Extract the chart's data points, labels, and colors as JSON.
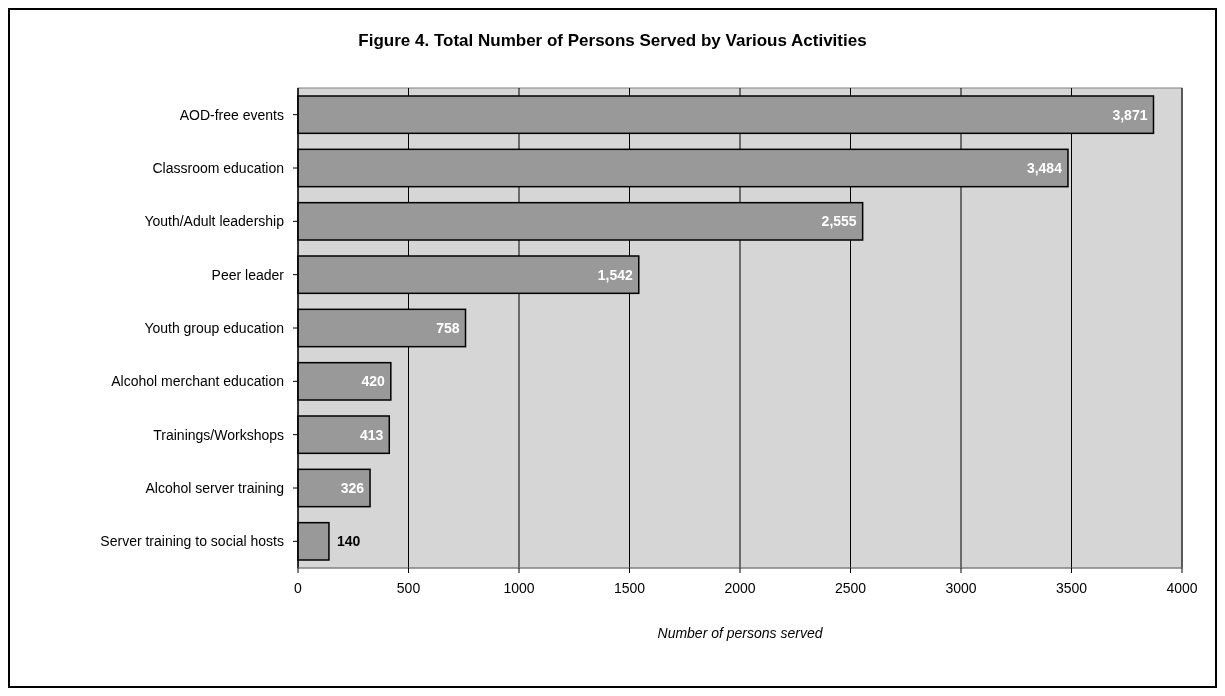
{
  "chart_data": {
    "type": "bar",
    "orientation": "horizontal",
    "title": "Figure 4. Total Number of Persons Served by Various Activities",
    "xlabel": "Number of persons served",
    "categories": [
      "AOD-free events",
      "Classroom education",
      "Youth/Adult leadership",
      "Peer leader",
      "Youth group education",
      "Alcohol merchant education",
      "Trainings/Workshops",
      "Alcohol server training",
      "Server training to social hosts"
    ],
    "values": [
      3871,
      3484,
      2555,
      1542,
      758,
      420,
      413,
      326,
      140
    ],
    "value_labels": [
      "3,871",
      "3,484",
      "2,555",
      "1,542",
      "758",
      "420",
      "413",
      "326",
      "140"
    ],
    "color": "#999999",
    "xlim": [
      0,
      4000
    ],
    "xticks": [
      0,
      500,
      1000,
      1500,
      2000,
      2500,
      3000,
      3500,
      4000
    ],
    "grid": "x"
  }
}
